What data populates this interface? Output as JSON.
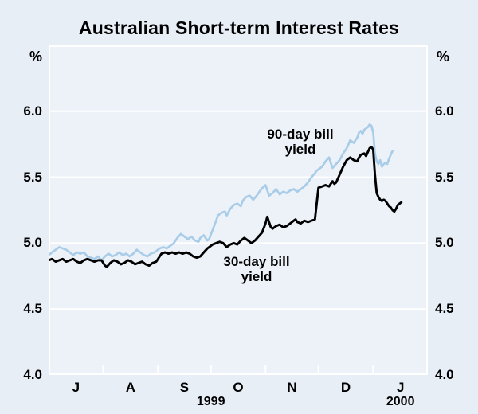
{
  "title": "Australian Short-term Interest Rates",
  "colors": {
    "page_bg": "#e8eef6",
    "plot_bg": "#edf2f9",
    "grid": "#ffffff",
    "text": "#000000",
    "line_90_day": "#a9cde8",
    "line_30_day": "#000000"
  },
  "y_axis": {
    "unit_left": "%",
    "unit_right": "%",
    "tick_labels": [
      {
        "label": "6.0",
        "value": 6.0
      },
      {
        "label": "5.5",
        "value": 5.5
      },
      {
        "label": "5.0",
        "value": 5.0
      },
      {
        "label": "4.5",
        "value": 4.5
      },
      {
        "label": "4.0",
        "value": 4.0
      }
    ]
  },
  "annotations": {
    "series_90": {
      "line1": "90-day bill",
      "line2": "yield"
    },
    "series_30": {
      "line1": "30-day bill",
      "line2": "yield"
    }
  },
  "chart_data": {
    "type": "line",
    "title": "Australian Short-term Interest Rates",
    "x_unit": "days since 1 July 1999",
    "x_range_days": [
      0,
      215
    ],
    "ylim": [
      4.0,
      6.5
    ],
    "ylabel": "%",
    "gridline_values": [
      4.5,
      5.0,
      5.5,
      6.0
    ],
    "month_tick_days": [
      31,
      62,
      92,
      123,
      153,
      184
    ],
    "month_labels": [
      {
        "label": "J",
        "center_day": 15.5
      },
      {
        "label": "A",
        "center_day": 46.5
      },
      {
        "label": "S",
        "center_day": 77
      },
      {
        "label": "O",
        "center_day": 107.5
      },
      {
        "label": "N",
        "center_day": 138
      },
      {
        "label": "D",
        "center_day": 168.5
      },
      {
        "label": "J",
        "center_day": 199.5
      }
    ],
    "year_labels": [
      {
        "label": "1999",
        "center_day": 92
      },
      {
        "label": "2000",
        "center_day": 199.5
      }
    ],
    "series": [
      {
        "name": "90-day bill yield",
        "color": "#a9cde8",
        "stroke_width": 2.7,
        "points": [
          [
            0,
            4.91
          ],
          [
            2,
            4.93
          ],
          [
            4,
            4.95
          ],
          [
            6,
            4.97
          ],
          [
            8,
            4.96
          ],
          [
            10,
            4.95
          ],
          [
            12,
            4.93
          ],
          [
            14,
            4.91
          ],
          [
            16,
            4.93
          ],
          [
            18,
            4.92
          ],
          [
            20,
            4.93
          ],
          [
            22,
            4.9
          ],
          [
            24,
            4.89
          ],
          [
            26,
            4.88
          ],
          [
            28,
            4.9
          ],
          [
            30,
            4.87
          ],
          [
            32,
            4.9
          ],
          [
            34,
            4.92
          ],
          [
            36,
            4.9
          ],
          [
            38,
            4.91
          ],
          [
            40,
            4.93
          ],
          [
            42,
            4.91
          ],
          [
            44,
            4.92
          ],
          [
            46,
            4.9
          ],
          [
            48,
            4.92
          ],
          [
            50,
            4.95
          ],
          [
            52,
            4.93
          ],
          [
            54,
            4.91
          ],
          [
            56,
            4.9
          ],
          [
            58,
            4.92
          ],
          [
            60,
            4.93
          ],
          [
            62,
            4.95
          ],
          [
            63,
            4.96
          ],
          [
            65,
            4.97
          ],
          [
            67,
            4.96
          ],
          [
            69,
            4.98
          ],
          [
            71,
            5.0
          ],
          [
            73,
            5.04
          ],
          [
            75,
            5.07
          ],
          [
            77,
            5.05
          ],
          [
            79,
            5.03
          ],
          [
            81,
            5.05
          ],
          [
            83,
            5.02
          ],
          [
            85,
            5.01
          ],
          [
            86,
            5.04
          ],
          [
            88,
            5.06
          ],
          [
            90,
            5.02
          ],
          [
            91,
            5.03
          ],
          [
            93,
            5.1
          ],
          [
            95,
            5.17
          ],
          [
            96,
            5.21
          ],
          [
            98,
            5.23
          ],
          [
            100,
            5.24
          ],
          [
            101,
            5.21
          ],
          [
            103,
            5.26
          ],
          [
            105,
            5.29
          ],
          [
            107,
            5.3
          ],
          [
            109,
            5.28
          ],
          [
            110,
            5.32
          ],
          [
            112,
            5.35
          ],
          [
            114,
            5.36
          ],
          [
            116,
            5.33
          ],
          [
            118,
            5.36
          ],
          [
            120,
            5.4
          ],
          [
            122,
            5.43
          ],
          [
            123,
            5.44
          ],
          [
            125,
            5.36
          ],
          [
            127,
            5.38
          ],
          [
            129,
            5.41
          ],
          [
            131,
            5.37
          ],
          [
            133,
            5.39
          ],
          [
            135,
            5.38
          ],
          [
            137,
            5.4
          ],
          [
            139,
            5.41
          ],
          [
            141,
            5.39
          ],
          [
            143,
            5.41
          ],
          [
            145,
            5.43
          ],
          [
            147,
            5.46
          ],
          [
            149,
            5.5
          ],
          [
            151,
            5.53
          ],
          [
            152,
            5.55
          ],
          [
            153,
            5.56
          ],
          [
            155,
            5.58
          ],
          [
            157,
            5.62
          ],
          [
            159,
            5.65
          ],
          [
            160,
            5.61
          ],
          [
            161,
            5.57
          ],
          [
            163,
            5.6
          ],
          [
            165,
            5.63
          ],
          [
            167,
            5.68
          ],
          [
            169,
            5.72
          ],
          [
            171,
            5.78
          ],
          [
            173,
            5.76
          ],
          [
            175,
            5.8
          ],
          [
            176,
            5.84
          ],
          [
            177,
            5.85
          ],
          [
            178,
            5.83
          ],
          [
            179,
            5.86
          ],
          [
            180,
            5.87
          ],
          [
            181,
            5.88
          ],
          [
            182,
            5.9
          ],
          [
            183,
            5.89
          ],
          [
            184,
            5.84
          ],
          [
            185,
            5.68
          ],
          [
            186,
            5.62
          ],
          [
            187,
            5.6
          ],
          [
            188,
            5.63
          ],
          [
            189,
            5.58
          ],
          [
            190,
            5.6
          ],
          [
            191,
            5.61
          ],
          [
            192,
            5.6
          ],
          [
            193,
            5.64
          ],
          [
            194,
            5.67
          ],
          [
            195,
            5.7
          ]
        ]
      },
      {
        "name": "30-day bill yield",
        "color": "#000000",
        "stroke_width": 2.9,
        "points": [
          [
            0,
            4.87
          ],
          [
            2,
            4.88
          ],
          [
            4,
            4.86
          ],
          [
            6,
            4.87
          ],
          [
            8,
            4.88
          ],
          [
            10,
            4.86
          ],
          [
            12,
            4.87
          ],
          [
            14,
            4.88
          ],
          [
            16,
            4.86
          ],
          [
            18,
            4.85
          ],
          [
            20,
            4.87
          ],
          [
            22,
            4.88
          ],
          [
            24,
            4.87
          ],
          [
            26,
            4.86
          ],
          [
            28,
            4.87
          ],
          [
            30,
            4.87
          ],
          [
            31,
            4.85
          ],
          [
            32,
            4.83
          ],
          [
            33,
            4.82
          ],
          [
            35,
            4.85
          ],
          [
            37,
            4.87
          ],
          [
            39,
            4.86
          ],
          [
            41,
            4.84
          ],
          [
            43,
            4.85
          ],
          [
            45,
            4.87
          ],
          [
            47,
            4.86
          ],
          [
            49,
            4.84
          ],
          [
            51,
            4.85
          ],
          [
            53,
            4.86
          ],
          [
            55,
            4.84
          ],
          [
            57,
            4.83
          ],
          [
            59,
            4.85
          ],
          [
            61,
            4.86
          ],
          [
            63,
            4.9
          ],
          [
            64,
            4.92
          ],
          [
            66,
            4.93
          ],
          [
            68,
            4.92
          ],
          [
            70,
            4.93
          ],
          [
            72,
            4.92
          ],
          [
            74,
            4.93
          ],
          [
            76,
            4.92
          ],
          [
            78,
            4.93
          ],
          [
            80,
            4.92
          ],
          [
            82,
            4.9
          ],
          [
            84,
            4.89
          ],
          [
            86,
            4.9
          ],
          [
            88,
            4.93
          ],
          [
            90,
            4.96
          ],
          [
            91,
            4.97
          ],
          [
            93,
            4.99
          ],
          [
            95,
            5.0
          ],
          [
            97,
            5.01
          ],
          [
            99,
            5.0
          ],
          [
            101,
            4.97
          ],
          [
            103,
            4.99
          ],
          [
            105,
            5.0
          ],
          [
            107,
            4.99
          ],
          [
            109,
            5.02
          ],
          [
            111,
            5.04
          ],
          [
            113,
            5.02
          ],
          [
            115,
            5.0
          ],
          [
            117,
            5.02
          ],
          [
            119,
            5.05
          ],
          [
            121,
            5.08
          ],
          [
            123,
            5.15
          ],
          [
            124,
            5.2
          ],
          [
            125,
            5.16
          ],
          [
            126,
            5.12
          ],
          [
            127,
            5.11
          ],
          [
            129,
            5.13
          ],
          [
            131,
            5.14
          ],
          [
            133,
            5.12
          ],
          [
            135,
            5.13
          ],
          [
            137,
            5.15
          ],
          [
            139,
            5.17
          ],
          [
            140,
            5.18
          ],
          [
            141,
            5.16
          ],
          [
            143,
            5.15
          ],
          [
            145,
            5.17
          ],
          [
            147,
            5.16
          ],
          [
            149,
            5.17
          ],
          [
            151,
            5.18
          ],
          [
            152,
            5.3
          ],
          [
            153,
            5.42
          ],
          [
            155,
            5.43
          ],
          [
            157,
            5.44
          ],
          [
            159,
            5.43
          ],
          [
            161,
            5.47
          ],
          [
            162,
            5.45
          ],
          [
            163,
            5.46
          ],
          [
            165,
            5.52
          ],
          [
            167,
            5.58
          ],
          [
            169,
            5.63
          ],
          [
            171,
            5.65
          ],
          [
            173,
            5.63
          ],
          [
            175,
            5.62
          ],
          [
            176,
            5.65
          ],
          [
            177,
            5.67
          ],
          [
            179,
            5.68
          ],
          [
            180,
            5.66
          ],
          [
            181,
            5.69
          ],
          [
            182,
            5.72
          ],
          [
            183,
            5.73
          ],
          [
            184,
            5.71
          ],
          [
            185,
            5.52
          ],
          [
            186,
            5.38
          ],
          [
            187,
            5.35
          ],
          [
            188,
            5.33
          ],
          [
            189,
            5.32
          ],
          [
            190,
            5.33
          ],
          [
            191,
            5.32
          ],
          [
            192,
            5.3
          ],
          [
            193,
            5.28
          ],
          [
            194,
            5.27
          ],
          [
            195,
            5.25
          ],
          [
            196,
            5.24
          ],
          [
            197,
            5.26
          ],
          [
            198,
            5.29
          ],
          [
            199,
            5.3
          ],
          [
            200,
            5.31
          ]
        ]
      }
    ]
  }
}
